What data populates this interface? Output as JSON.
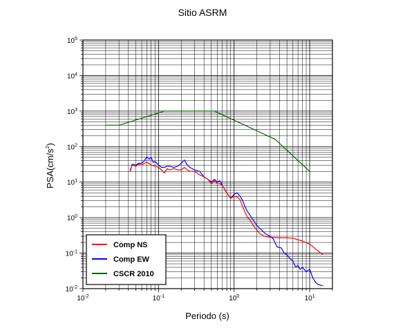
{
  "chart_data": {
    "type": "line",
    "title": "Sitio ASRM",
    "xlabel": "Periodo (s)",
    "ylabel": {
      "prefix": "PSA(cm/s",
      "sup": "2",
      "suffix": ")"
    },
    "x_scale": "log",
    "y_scale": "log",
    "xlim": [
      0.01,
      20
    ],
    "ylim": [
      0.01,
      100000
    ],
    "x_ticks": [
      {
        "value": 0.01,
        "base": "10",
        "exp": "-2"
      },
      {
        "value": 0.1,
        "base": "10",
        "exp": "-1"
      },
      {
        "value": 1,
        "base": "10",
        "exp": "0"
      },
      {
        "value": 10,
        "base": "10",
        "exp": "1"
      }
    ],
    "y_ticks": [
      {
        "value": 0.01,
        "base": "10",
        "exp": "-2"
      },
      {
        "value": 0.1,
        "base": "10",
        "exp": "-1"
      },
      {
        "value": 1,
        "base": "10",
        "exp": "0"
      },
      {
        "value": 10,
        "base": "10",
        "exp": "1"
      },
      {
        "value": 100,
        "base": "10",
        "exp": "2"
      },
      {
        "value": 1000,
        "base": "10",
        "exp": "3"
      },
      {
        "value": 10000,
        "base": "10",
        "exp": "4"
      },
      {
        "value": 100000,
        "base": "10",
        "exp": "5"
      }
    ],
    "grid": true,
    "legend_position": "bottom-left",
    "series": [
      {
        "name": "Comp NS",
        "color": "#ff0000",
        "points": [
          [
            0.042,
            22
          ],
          [
            0.045,
            30
          ],
          [
            0.05,
            28
          ],
          [
            0.055,
            32
          ],
          [
            0.06,
            30
          ],
          [
            0.065,
            34
          ],
          [
            0.07,
            36
          ],
          [
            0.075,
            34
          ],
          [
            0.08,
            30
          ],
          [
            0.09,
            28
          ],
          [
            0.1,
            26
          ],
          [
            0.11,
            22
          ],
          [
            0.12,
            18
          ],
          [
            0.13,
            24
          ],
          [
            0.14,
            22
          ],
          [
            0.16,
            24
          ],
          [
            0.18,
            22
          ],
          [
            0.2,
            22
          ],
          [
            0.22,
            26
          ],
          [
            0.24,
            22
          ],
          [
            0.26,
            20
          ],
          [
            0.3,
            20
          ],
          [
            0.35,
            16
          ],
          [
            0.4,
            14
          ],
          [
            0.45,
            12
          ],
          [
            0.5,
            9
          ],
          [
            0.55,
            11
          ],
          [
            0.6,
            9
          ],
          [
            0.65,
            9
          ],
          [
            0.7,
            8
          ],
          [
            0.8,
            5
          ],
          [
            0.9,
            3.5
          ],
          [
            1.0,
            4
          ],
          [
            1.1,
            3.8
          ],
          [
            1.2,
            3.2
          ],
          [
            1.3,
            2.0
          ],
          [
            1.4,
            1.4
          ],
          [
            1.5,
            1.0
          ],
          [
            1.6,
            0.9
          ],
          [
            1.8,
            0.6
          ],
          [
            2.0,
            0.45
          ],
          [
            2.2,
            0.35
          ],
          [
            2.5,
            0.3
          ],
          [
            3.0,
            0.28
          ],
          [
            4.0,
            0.27
          ],
          [
            5.0,
            0.27
          ],
          [
            6.0,
            0.26
          ],
          [
            8.0,
            0.22
          ],
          [
            10.0,
            0.18
          ],
          [
            12.0,
            0.13
          ],
          [
            15.0,
            0.09
          ]
        ]
      },
      {
        "name": "Comp EW",
        "color": "#0000ff",
        "points": [
          [
            0.042,
            20
          ],
          [
            0.045,
            32
          ],
          [
            0.05,
            30
          ],
          [
            0.055,
            34
          ],
          [
            0.06,
            34
          ],
          [
            0.065,
            40
          ],
          [
            0.07,
            52
          ],
          [
            0.075,
            44
          ],
          [
            0.08,
            50
          ],
          [
            0.085,
            36
          ],
          [
            0.09,
            38
          ],
          [
            0.1,
            30
          ],
          [
            0.11,
            26
          ],
          [
            0.12,
            26
          ],
          [
            0.13,
            28
          ],
          [
            0.14,
            28
          ],
          [
            0.16,
            26
          ],
          [
            0.18,
            28
          ],
          [
            0.2,
            34
          ],
          [
            0.22,
            42
          ],
          [
            0.24,
            30
          ],
          [
            0.26,
            26
          ],
          [
            0.3,
            22
          ],
          [
            0.35,
            20
          ],
          [
            0.4,
            14
          ],
          [
            0.45,
            12
          ],
          [
            0.5,
            10
          ],
          [
            0.55,
            12
          ],
          [
            0.6,
            10
          ],
          [
            0.65,
            11
          ],
          [
            0.7,
            8
          ],
          [
            0.8,
            5
          ],
          [
            0.9,
            3.5
          ],
          [
            1.0,
            4.5
          ],
          [
            1.1,
            5.0
          ],
          [
            1.2,
            4.0
          ],
          [
            1.3,
            3.0
          ],
          [
            1.4,
            2.0
          ],
          [
            1.5,
            1.5
          ],
          [
            1.7,
            1.0
          ],
          [
            2.0,
            0.6
          ],
          [
            2.3,
            0.45
          ],
          [
            2.6,
            0.35
          ],
          [
            3.0,
            0.3
          ],
          [
            3.3,
            0.25
          ],
          [
            3.7,
            0.15
          ],
          [
            4.2,
            0.14
          ],
          [
            4.6,
            0.1
          ],
          [
            5.0,
            0.09
          ],
          [
            5.5,
            0.07
          ],
          [
            6.0,
            0.06
          ],
          [
            6.5,
            0.04
          ],
          [
            7.0,
            0.045
          ],
          [
            7.5,
            0.035
          ],
          [
            8.0,
            0.04
          ],
          [
            9.0,
            0.03
          ],
          [
            10.0,
            0.035
          ],
          [
            11.0,
            0.02
          ],
          [
            12.0,
            0.015
          ],
          [
            13.0,
            0.013
          ],
          [
            15.0,
            0.012
          ]
        ]
      },
      {
        "name": "CSCR 2010",
        "color": "#006400",
        "points": [
          [
            0.02,
            400
          ],
          [
            0.03,
            400
          ],
          [
            0.12,
            1000
          ],
          [
            0.55,
            1000
          ],
          [
            3.5,
            160
          ],
          [
            10.0,
            20
          ]
        ]
      }
    ]
  }
}
